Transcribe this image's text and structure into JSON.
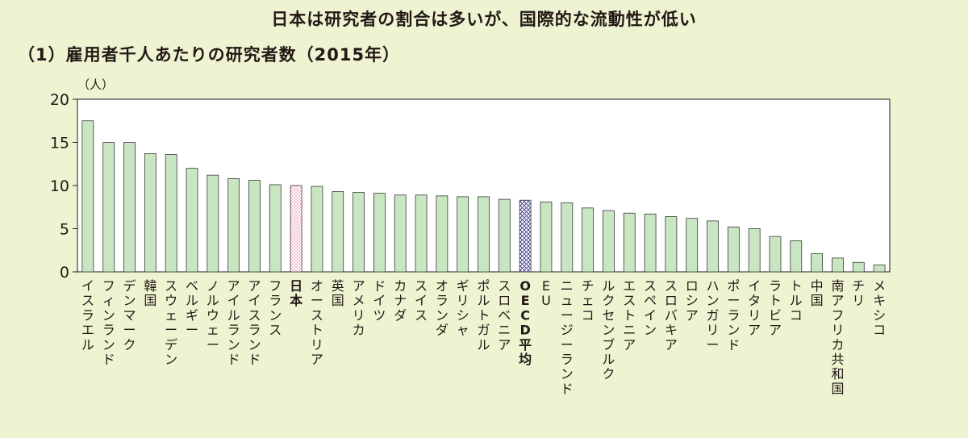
{
  "colors": {
    "background": "#eef4d2",
    "bar": "#c9e6c2",
    "bar_stroke": "#3a3a3a",
    "japan_pattern": "#e87093",
    "oecd_pattern": "#3b3b8c"
  },
  "chart_data": {
    "type": "bar",
    "title": "日本は研究者の割合は多いが、国際的な流動性が低い",
    "subtitle": "（1）雇用者千人あたりの研究者数（2015年）",
    "ylabel": "（人）",
    "ylim": [
      0,
      20
    ],
    "yticks": [
      "0",
      "5",
      "10",
      "15",
      "20"
    ],
    "grid": false,
    "categories": [
      "イスラエル",
      "フィンランド",
      "デンマーク",
      "韓国",
      "スウェーデン",
      "ベルギー",
      "ノルウェー",
      "アイルランド",
      "アイスランド",
      "フランス",
      "日本",
      "オーストリア",
      "英国",
      "アメリカ",
      "ドイツ",
      "カナダ",
      "スイス",
      "オランダ",
      "ギリシャ",
      "ポルトガル",
      "スロベニア",
      "OECD平均",
      "EU",
      "ニュージーランド",
      "チェコ",
      "ルクセンブルク",
      "エストニア",
      "スペイン",
      "スロバキア",
      "ロシア",
      "ハンガリー",
      "ポーランド",
      "イタリア",
      "ラトビア",
      "トルコ",
      "中国",
      "南アフリカ共和国",
      "チリ",
      "メキシコ"
    ],
    "values": [
      17.5,
      15.0,
      15.0,
      13.7,
      13.6,
      12.0,
      11.2,
      10.8,
      10.6,
      10.1,
      10.0,
      9.9,
      9.3,
      9.2,
      9.1,
      8.9,
      8.9,
      8.8,
      8.7,
      8.7,
      8.4,
      8.3,
      8.1,
      8.0,
      7.4,
      7.1,
      6.8,
      6.7,
      6.4,
      6.2,
      5.9,
      5.2,
      5.0,
      4.1,
      3.6,
      2.1,
      1.6,
      1.1,
      0.8
    ],
    "highlight": {
      "日本": "japan",
      "OECD平均": "oecd"
    }
  }
}
